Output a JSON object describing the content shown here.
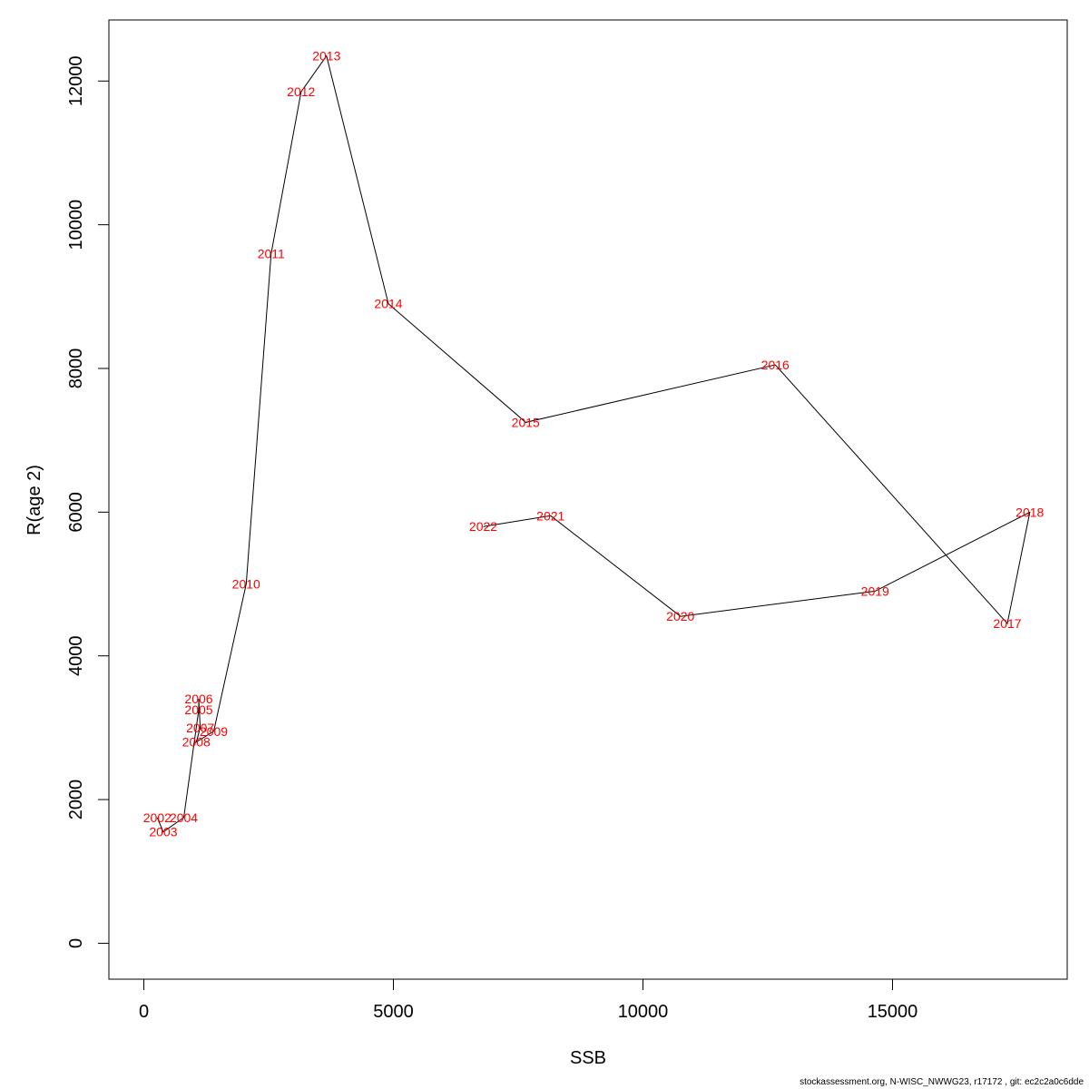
{
  "chart_data": {
    "type": "line",
    "xlabel": "SSB",
    "ylabel": "R(age 2)",
    "xlim": [
      -700,
      18500
    ],
    "ylim": [
      -500,
      12850
    ],
    "xticks": [
      0,
      5000,
      10000,
      15000
    ],
    "yticks": [
      0,
      2000,
      4000,
      6000,
      8000,
      10000,
      12000
    ],
    "label_color": "#ff0000",
    "line_color": "#000000",
    "points": [
      {
        "label": "2002",
        "x": 270,
        "y": 1750
      },
      {
        "label": "2003",
        "x": 390,
        "y": 1550
      },
      {
        "label": "2004",
        "x": 800,
        "y": 1750
      },
      {
        "label": "2005",
        "x": 1100,
        "y": 3250
      },
      {
        "label": "2006",
        "x": 1100,
        "y": 3400
      },
      {
        "label": "2007",
        "x": 1130,
        "y": 3000
      },
      {
        "label": "2008",
        "x": 1050,
        "y": 2800
      },
      {
        "label": "2009",
        "x": 1400,
        "y": 2950
      },
      {
        "label": "2010",
        "x": 2050,
        "y": 5000
      },
      {
        "label": "2011",
        "x": 2550,
        "y": 9600
      },
      {
        "label": "2012",
        "x": 3150,
        "y": 11850
      },
      {
        "label": "2013",
        "x": 3660,
        "y": 12350
      },
      {
        "label": "2014",
        "x": 4900,
        "y": 8900
      },
      {
        "label": "2015",
        "x": 7650,
        "y": 7250
      },
      {
        "label": "2016",
        "x": 12650,
        "y": 8050
      },
      {
        "label": "2017",
        "x": 17300,
        "y": 4450
      },
      {
        "label": "2018",
        "x": 17750,
        "y": 6000
      },
      {
        "label": "2019",
        "x": 14650,
        "y": 4900
      },
      {
        "label": "2020",
        "x": 10750,
        "y": 4550
      },
      {
        "label": "2021",
        "x": 8150,
        "y": 5950
      },
      {
        "label": "2022",
        "x": 6800,
        "y": 5800
      }
    ]
  },
  "footer": "stockassessment.org, N-WISC_NWWG23, r17172 , git: ec2c2a0c6dde"
}
